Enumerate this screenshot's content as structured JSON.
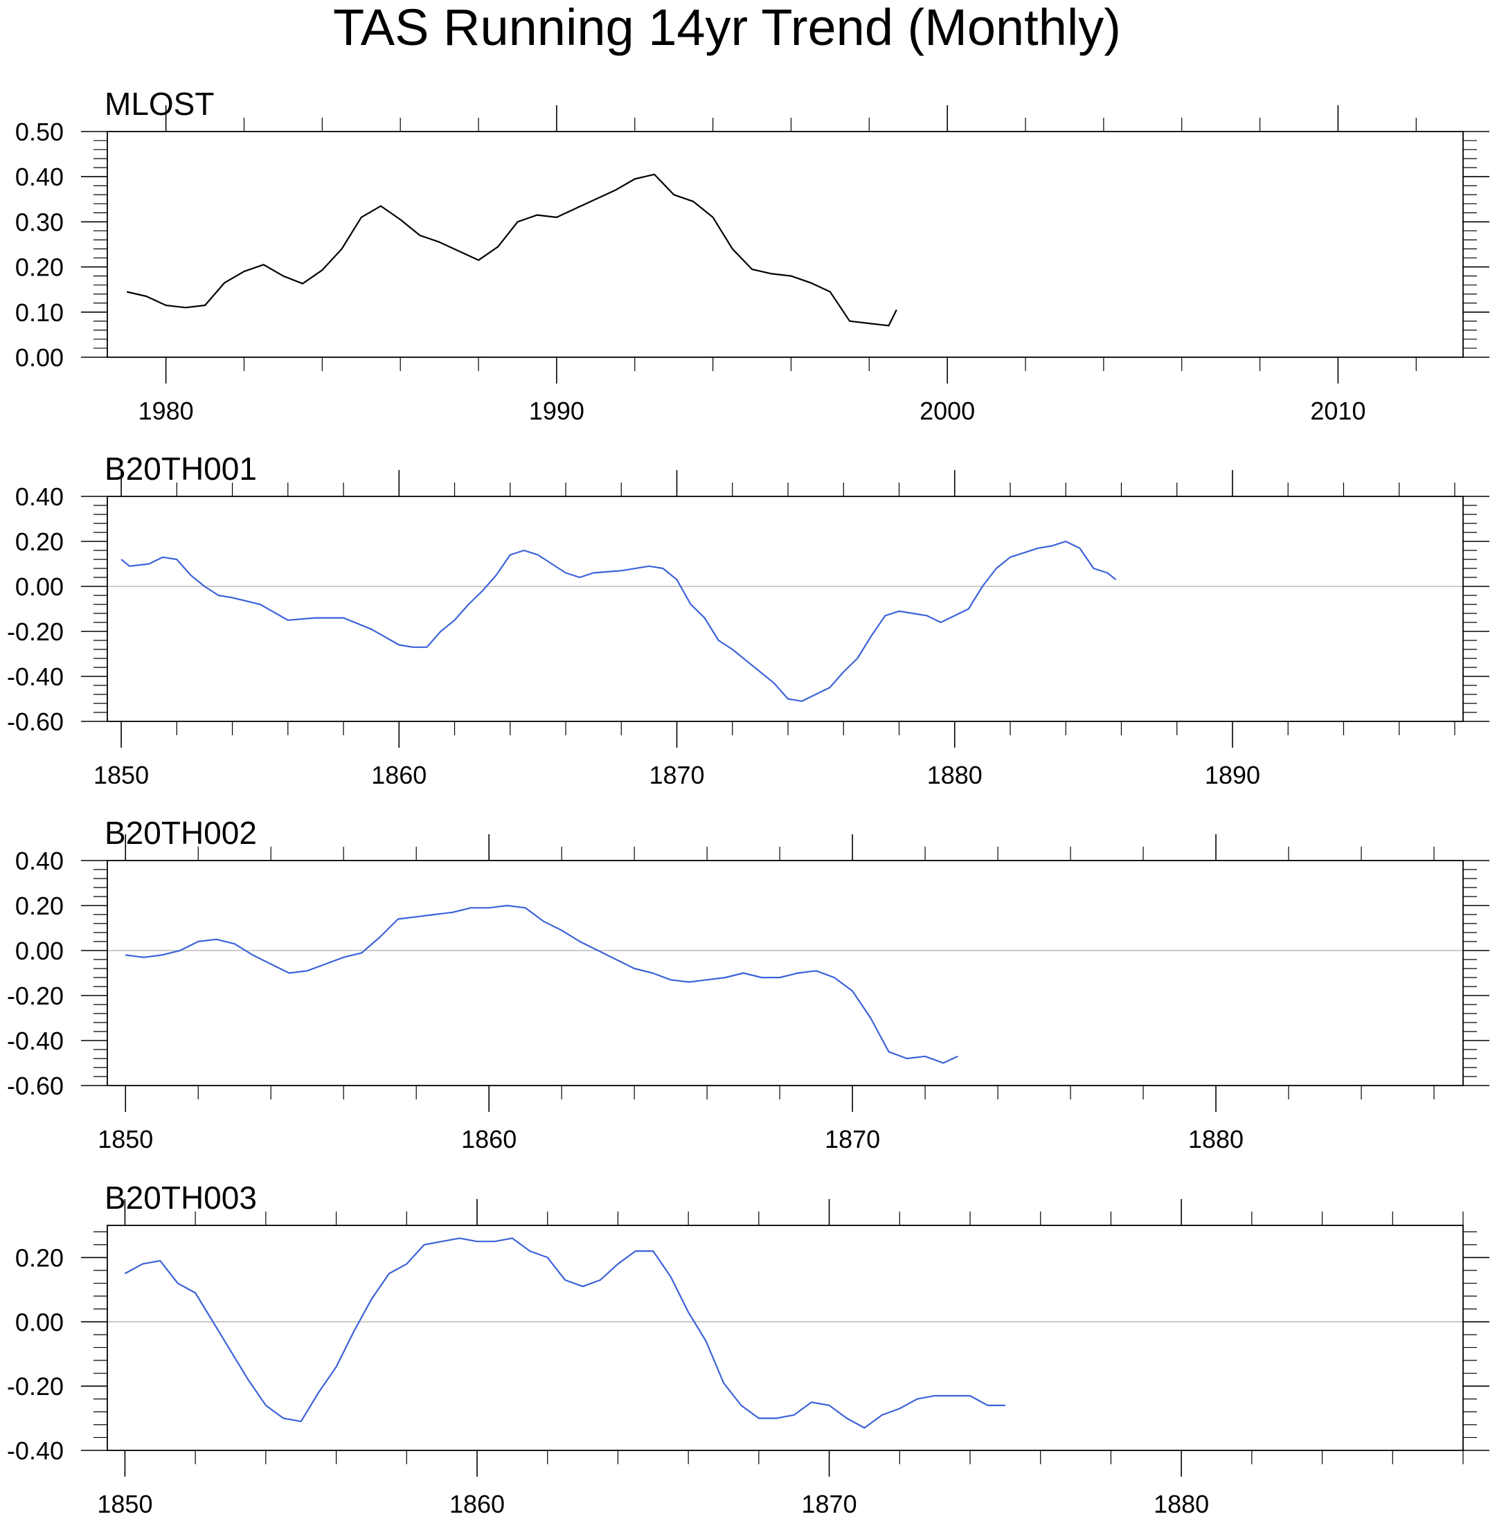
{
  "title": "TAS Running 14yr Trend (Monthly)",
  "colors": {
    "observed": "#000000",
    "model": "#3b62d9",
    "zero_line": "#bbbbbb",
    "axis": "#000000"
  },
  "chart_data": [
    {
      "type": "line",
      "title": "MLOST",
      "color": "#000000",
      "zero_line": false,
      "xlim": [
        1978.5,
        2013.2
      ],
      "ylim": [
        0.0,
        0.5
      ],
      "x_major": [
        1980,
        1990,
        2000,
        2010
      ],
      "x_tick_labels": [
        "1980",
        "1990",
        "2000",
        "2010"
      ],
      "x_minor_step": 2,
      "y_ticks": [
        0.0,
        0.1,
        0.2,
        0.3,
        0.4,
        0.5
      ],
      "y_tick_labels": [
        "0.00",
        "0.10",
        "0.20",
        "0.30",
        "0.40",
        "0.50"
      ],
      "y_minor_step": 0.02,
      "x": [
        1979.0,
        1979.5,
        1980.0,
        1980.5,
        1981.0,
        1981.5,
        1982.0,
        1982.5,
        1983.0,
        1983.5,
        1984.0,
        1984.5,
        1985.0,
        1985.5,
        1986.0,
        1986.5,
        1987.0,
        1987.5,
        1988.0,
        1988.5,
        1989.0,
        1989.5,
        1990.0,
        1990.5,
        1991.0,
        1991.5,
        1992.0,
        1992.5,
        1993.0,
        1993.5,
        1994.0,
        1994.5,
        1995.0,
        1995.5,
        1996.0,
        1996.5,
        1997.0,
        1997.5,
        1998.0,
        1998.5,
        1998.7
      ],
      "y": [
        0.145,
        0.135,
        0.115,
        0.11,
        0.115,
        0.165,
        0.19,
        0.205,
        0.18,
        0.163,
        0.193,
        0.24,
        0.31,
        0.335,
        0.305,
        0.27,
        0.255,
        0.235,
        0.215,
        0.245,
        0.3,
        0.315,
        0.31,
        0.33,
        0.35,
        0.37,
        0.395,
        0.405,
        0.36,
        0.345,
        0.31,
        0.24,
        0.195,
        0.185,
        0.18,
        0.165,
        0.145,
        0.08,
        0.075,
        0.07,
        0.105
      ]
    },
    {
      "type": "line",
      "title": "B20TH001",
      "color": "#3b62d9",
      "zero_line": true,
      "xlim": [
        1849.5,
        1898.3
      ],
      "ylim": [
        -0.6,
        0.4
      ],
      "x_major": [
        1850,
        1860,
        1870,
        1880,
        1890
      ],
      "x_tick_labels": [
        "1850",
        "1860",
        "1870",
        "1880",
        "1890"
      ],
      "x_minor_step": 2,
      "y_ticks": [
        -0.6,
        -0.4,
        -0.2,
        0.0,
        0.2,
        0.4
      ],
      "y_tick_labels": [
        "-0.60",
        "-0.40",
        "-0.20",
        "0.00",
        "0.20",
        "0.40"
      ],
      "y_minor_step": 0.04,
      "x": [
        1850.0,
        1850.3,
        1851.0,
        1851.5,
        1852.0,
        1852.5,
        1853.0,
        1853.5,
        1854.0,
        1855.0,
        1856.0,
        1857.0,
        1858.0,
        1859.0,
        1860.0,
        1860.5,
        1861.0,
        1861.5,
        1862.0,
        1862.5,
        1863.0,
        1863.5,
        1864.0,
        1864.5,
        1865.0,
        1865.5,
        1866.0,
        1866.5,
        1867.0,
        1868.0,
        1869.0,
        1869.5,
        1870.0,
        1870.5,
        1871.0,
        1871.5,
        1872.0,
        1872.5,
        1873.0,
        1873.5,
        1874.0,
        1874.5,
        1875.0,
        1875.5,
        1876.0,
        1876.5,
        1877.0,
        1877.5,
        1878.0,
        1878.5,
        1879.0,
        1879.5,
        1880.0,
        1880.5,
        1881.0,
        1881.5,
        1882.0,
        1882.5,
        1883.0,
        1883.5,
        1884.0,
        1884.5,
        1885.0,
        1885.5,
        1885.8
      ],
      "y": [
        0.12,
        0.09,
        0.1,
        0.13,
        0.12,
        0.05,
        0.0,
        -0.04,
        -0.05,
        -0.08,
        -0.15,
        -0.14,
        -0.14,
        -0.19,
        -0.26,
        -0.27,
        -0.27,
        -0.2,
        -0.15,
        -0.08,
        -0.02,
        0.05,
        0.14,
        0.16,
        0.14,
        0.1,
        0.06,
        0.04,
        0.06,
        0.07,
        0.09,
        0.08,
        0.03,
        -0.08,
        -0.14,
        -0.24,
        -0.28,
        -0.33,
        -0.38,
        -0.43,
        -0.5,
        -0.51,
        -0.48,
        -0.45,
        -0.38,
        -0.32,
        -0.22,
        -0.13,
        -0.11,
        -0.12,
        -0.13,
        -0.16,
        -0.13,
        -0.1,
        0.0,
        0.08,
        0.13,
        0.15,
        0.17,
        0.18,
        0.2,
        0.17,
        0.08,
        0.06,
        0.03
      ]
    },
    {
      "type": "line",
      "title": "B20TH002",
      "color": "#3b62d9",
      "zero_line": true,
      "xlim": [
        1849.5,
        1886.8
      ],
      "ylim": [
        -0.6,
        0.4
      ],
      "x_major": [
        1850,
        1860,
        1870,
        1880
      ],
      "x_tick_labels": [
        "1850",
        "1860",
        "1870",
        "1880"
      ],
      "x_minor_step": 2,
      "y_ticks": [
        -0.6,
        -0.4,
        -0.2,
        0.0,
        0.2,
        0.4
      ],
      "y_tick_labels": [
        "-0.60",
        "-0.40",
        "-0.20",
        "0.00",
        "0.20",
        "0.40"
      ],
      "y_minor_step": 0.04,
      "x": [
        1850.0,
        1850.5,
        1851.0,
        1851.5,
        1852.0,
        1852.5,
        1853.0,
        1853.5,
        1854.0,
        1854.5,
        1855.0,
        1855.5,
        1856.0,
        1856.5,
        1857.0,
        1857.5,
        1858.0,
        1858.5,
        1859.0,
        1859.5,
        1860.0,
        1860.5,
        1861.0,
        1861.5,
        1862.0,
        1862.5,
        1863.0,
        1863.5,
        1864.0,
        1864.5,
        1865.0,
        1865.5,
        1866.0,
        1866.5,
        1867.0,
        1867.5,
        1868.0,
        1868.5,
        1869.0,
        1869.5,
        1870.0,
        1870.5,
        1871.0,
        1871.5,
        1872.0,
        1872.5,
        1872.9
      ],
      "y": [
        -0.02,
        -0.03,
        -0.02,
        0.0,
        0.04,
        0.05,
        0.03,
        -0.02,
        -0.06,
        -0.1,
        -0.09,
        -0.06,
        -0.03,
        -0.01,
        0.06,
        0.14,
        0.15,
        0.16,
        0.17,
        0.19,
        0.19,
        0.2,
        0.19,
        0.13,
        0.09,
        0.04,
        0.0,
        -0.04,
        -0.08,
        -0.1,
        -0.13,
        -0.14,
        -0.13,
        -0.12,
        -0.1,
        -0.12,
        -0.12,
        -0.1,
        -0.09,
        -0.12,
        -0.18,
        -0.3,
        -0.45,
        -0.48,
        -0.47,
        -0.5,
        -0.47
      ]
    },
    {
      "type": "line",
      "title": "B20TH003",
      "color": "#3b62d9",
      "zero_line": true,
      "xlim": [
        1849.5,
        1888.0
      ],
      "ylim": [
        -0.4,
        0.3
      ],
      "x_major": [
        1850,
        1860,
        1870,
        1880
      ],
      "x_tick_labels": [
        "1850",
        "1860",
        "1870",
        "1880"
      ],
      "x_minor_step": 2,
      "y_ticks": [
        -0.4,
        -0.2,
        0.0,
        0.2
      ],
      "y_tick_labels": [
        "-0.40",
        "-0.20",
        "0.00",
        "0.20"
      ],
      "y_minor_step": 0.04,
      "x": [
        1850.0,
        1850.5,
        1851.0,
        1851.5,
        1852.0,
        1852.5,
        1853.0,
        1853.5,
        1854.0,
        1854.5,
        1855.0,
        1855.5,
        1856.0,
        1856.5,
        1857.0,
        1857.5,
        1858.0,
        1858.5,
        1859.0,
        1859.5,
        1860.0,
        1860.5,
        1861.0,
        1861.5,
        1862.0,
        1862.5,
        1863.0,
        1863.5,
        1864.0,
        1864.5,
        1865.0,
        1865.5,
        1866.0,
        1866.5,
        1867.0,
        1867.5,
        1868.0,
        1868.5,
        1869.0,
        1869.5,
        1870.0,
        1870.5,
        1871.0,
        1871.5,
        1872.0,
        1872.5,
        1873.0,
        1873.5,
        1874.0,
        1874.5,
        1875.0
      ],
      "y": [
        0.15,
        0.18,
        0.19,
        0.12,
        0.09,
        0.0,
        -0.09,
        -0.18,
        -0.26,
        -0.3,
        -0.31,
        -0.22,
        -0.14,
        -0.03,
        0.07,
        0.15,
        0.18,
        0.24,
        0.25,
        0.26,
        0.25,
        0.25,
        0.26,
        0.22,
        0.2,
        0.13,
        0.11,
        0.13,
        0.18,
        0.22,
        0.22,
        0.14,
        0.03,
        -0.06,
        -0.19,
        -0.26,
        -0.3,
        -0.3,
        -0.29,
        -0.25,
        -0.26,
        -0.3,
        -0.33,
        -0.29,
        -0.27,
        -0.24,
        -0.23,
        -0.23,
        -0.23,
        -0.26,
        -0.26
      ]
    }
  ]
}
